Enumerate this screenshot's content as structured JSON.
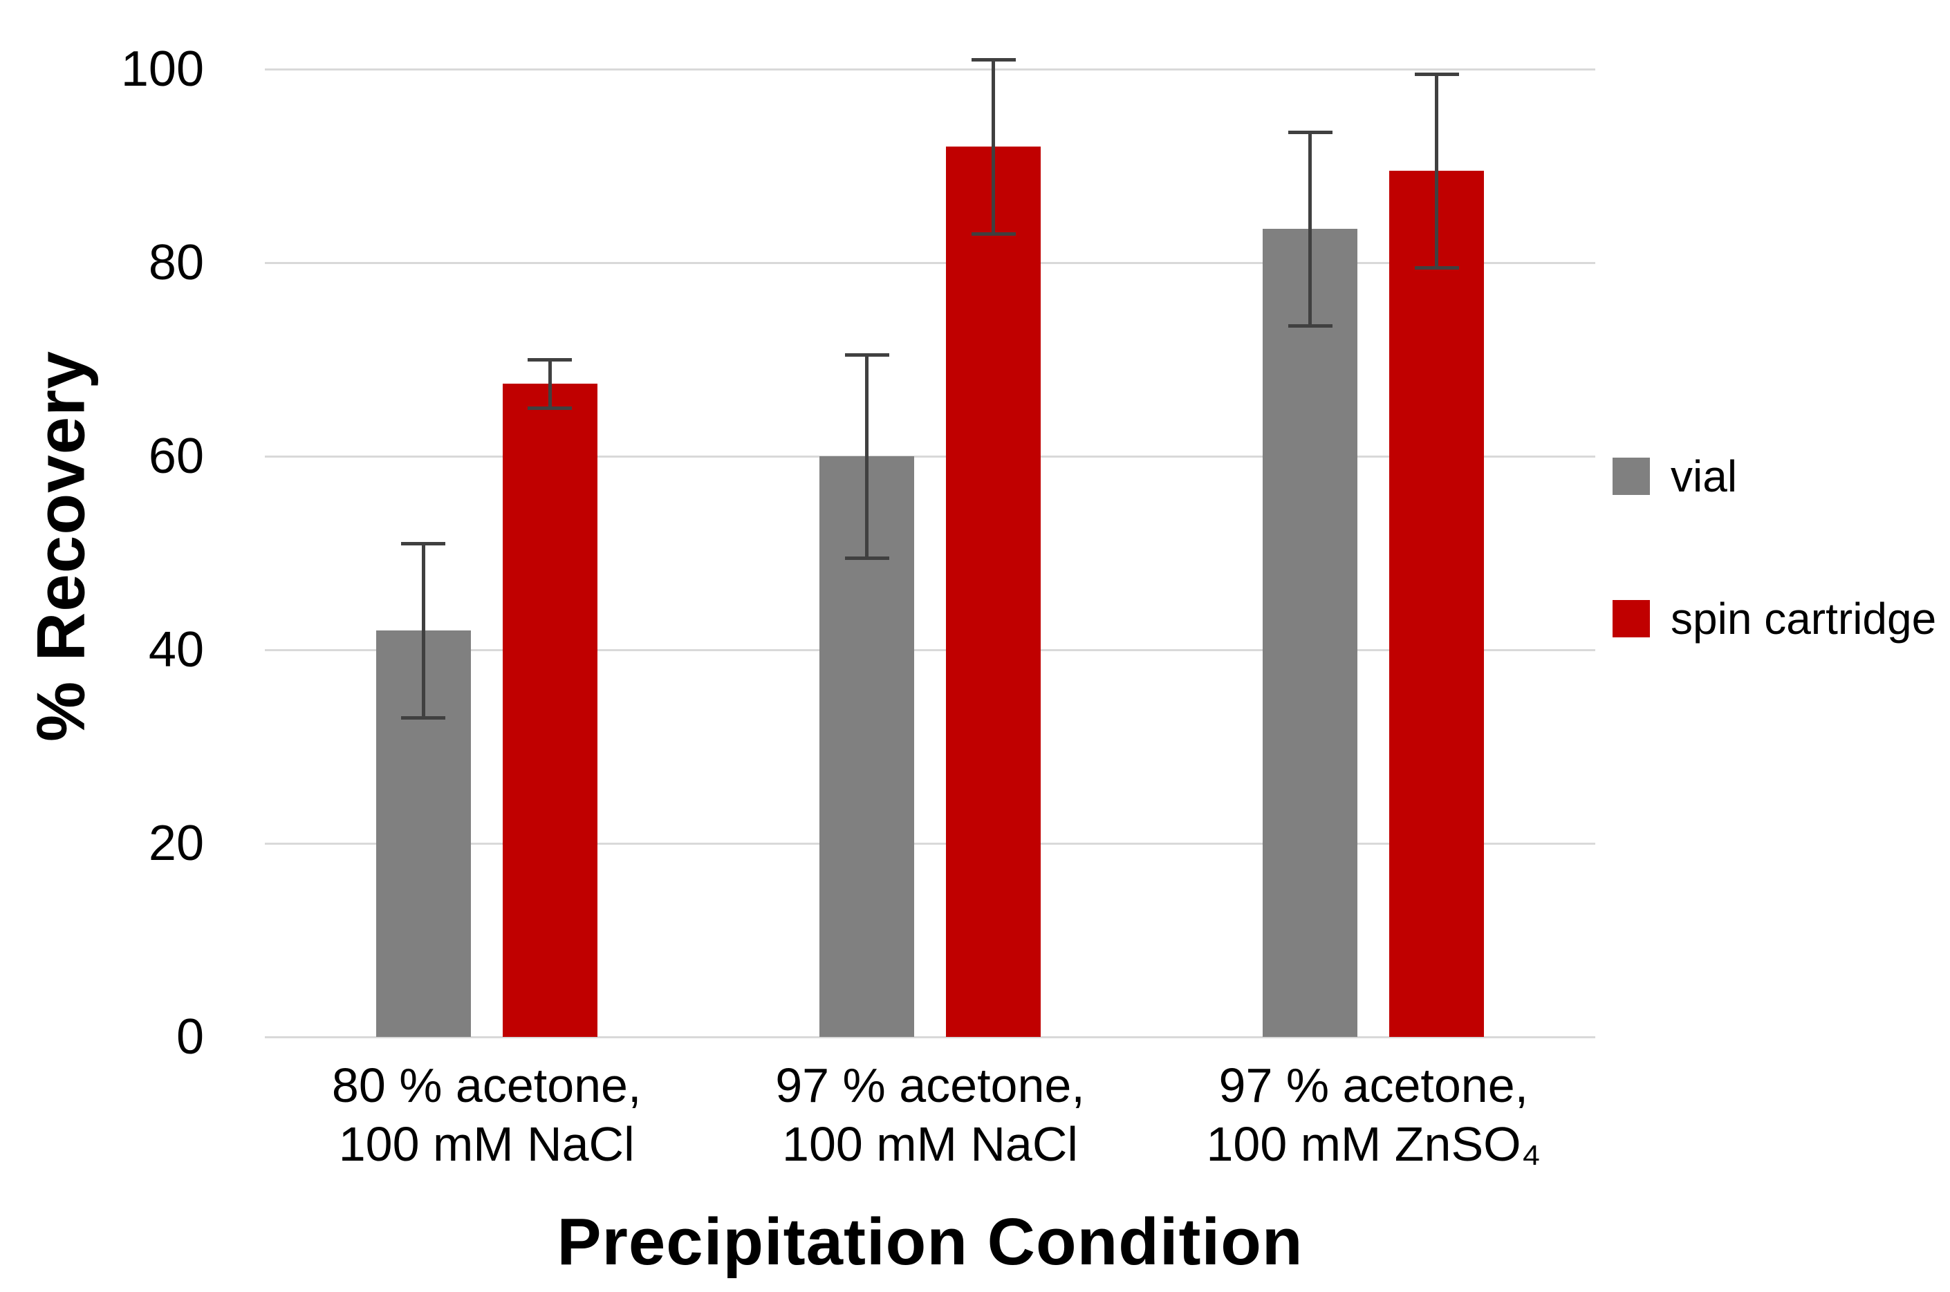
{
  "chart_data": {
    "type": "bar",
    "title": "",
    "xlabel": "Precipitation Condition",
    "ylabel": "% Recovery",
    "ylim": [
      0,
      100
    ],
    "yticks": [
      0,
      20,
      40,
      60,
      80,
      100
    ],
    "grid": true,
    "legend_position": "right",
    "gridline_color": "#d9d9d9",
    "error_bar_color": "#404040",
    "categories": [
      [
        "80 % acetone,",
        "100 mM NaCl"
      ],
      [
        "97 % acetone,",
        "100 mM NaCl"
      ],
      [
        "97 % acetone,",
        "100 mM ZnSO₄"
      ]
    ],
    "series": [
      {
        "name": "vial",
        "color": "#808080",
        "values": [
          42,
          60,
          83.5
        ],
        "errors": [
          9,
          10.5,
          10
        ]
      },
      {
        "name": "spin cartridge",
        "color": "#c00000",
        "values": [
          67.5,
          92,
          89.5
        ],
        "errors": [
          2.5,
          9,
          10
        ]
      }
    ]
  }
}
